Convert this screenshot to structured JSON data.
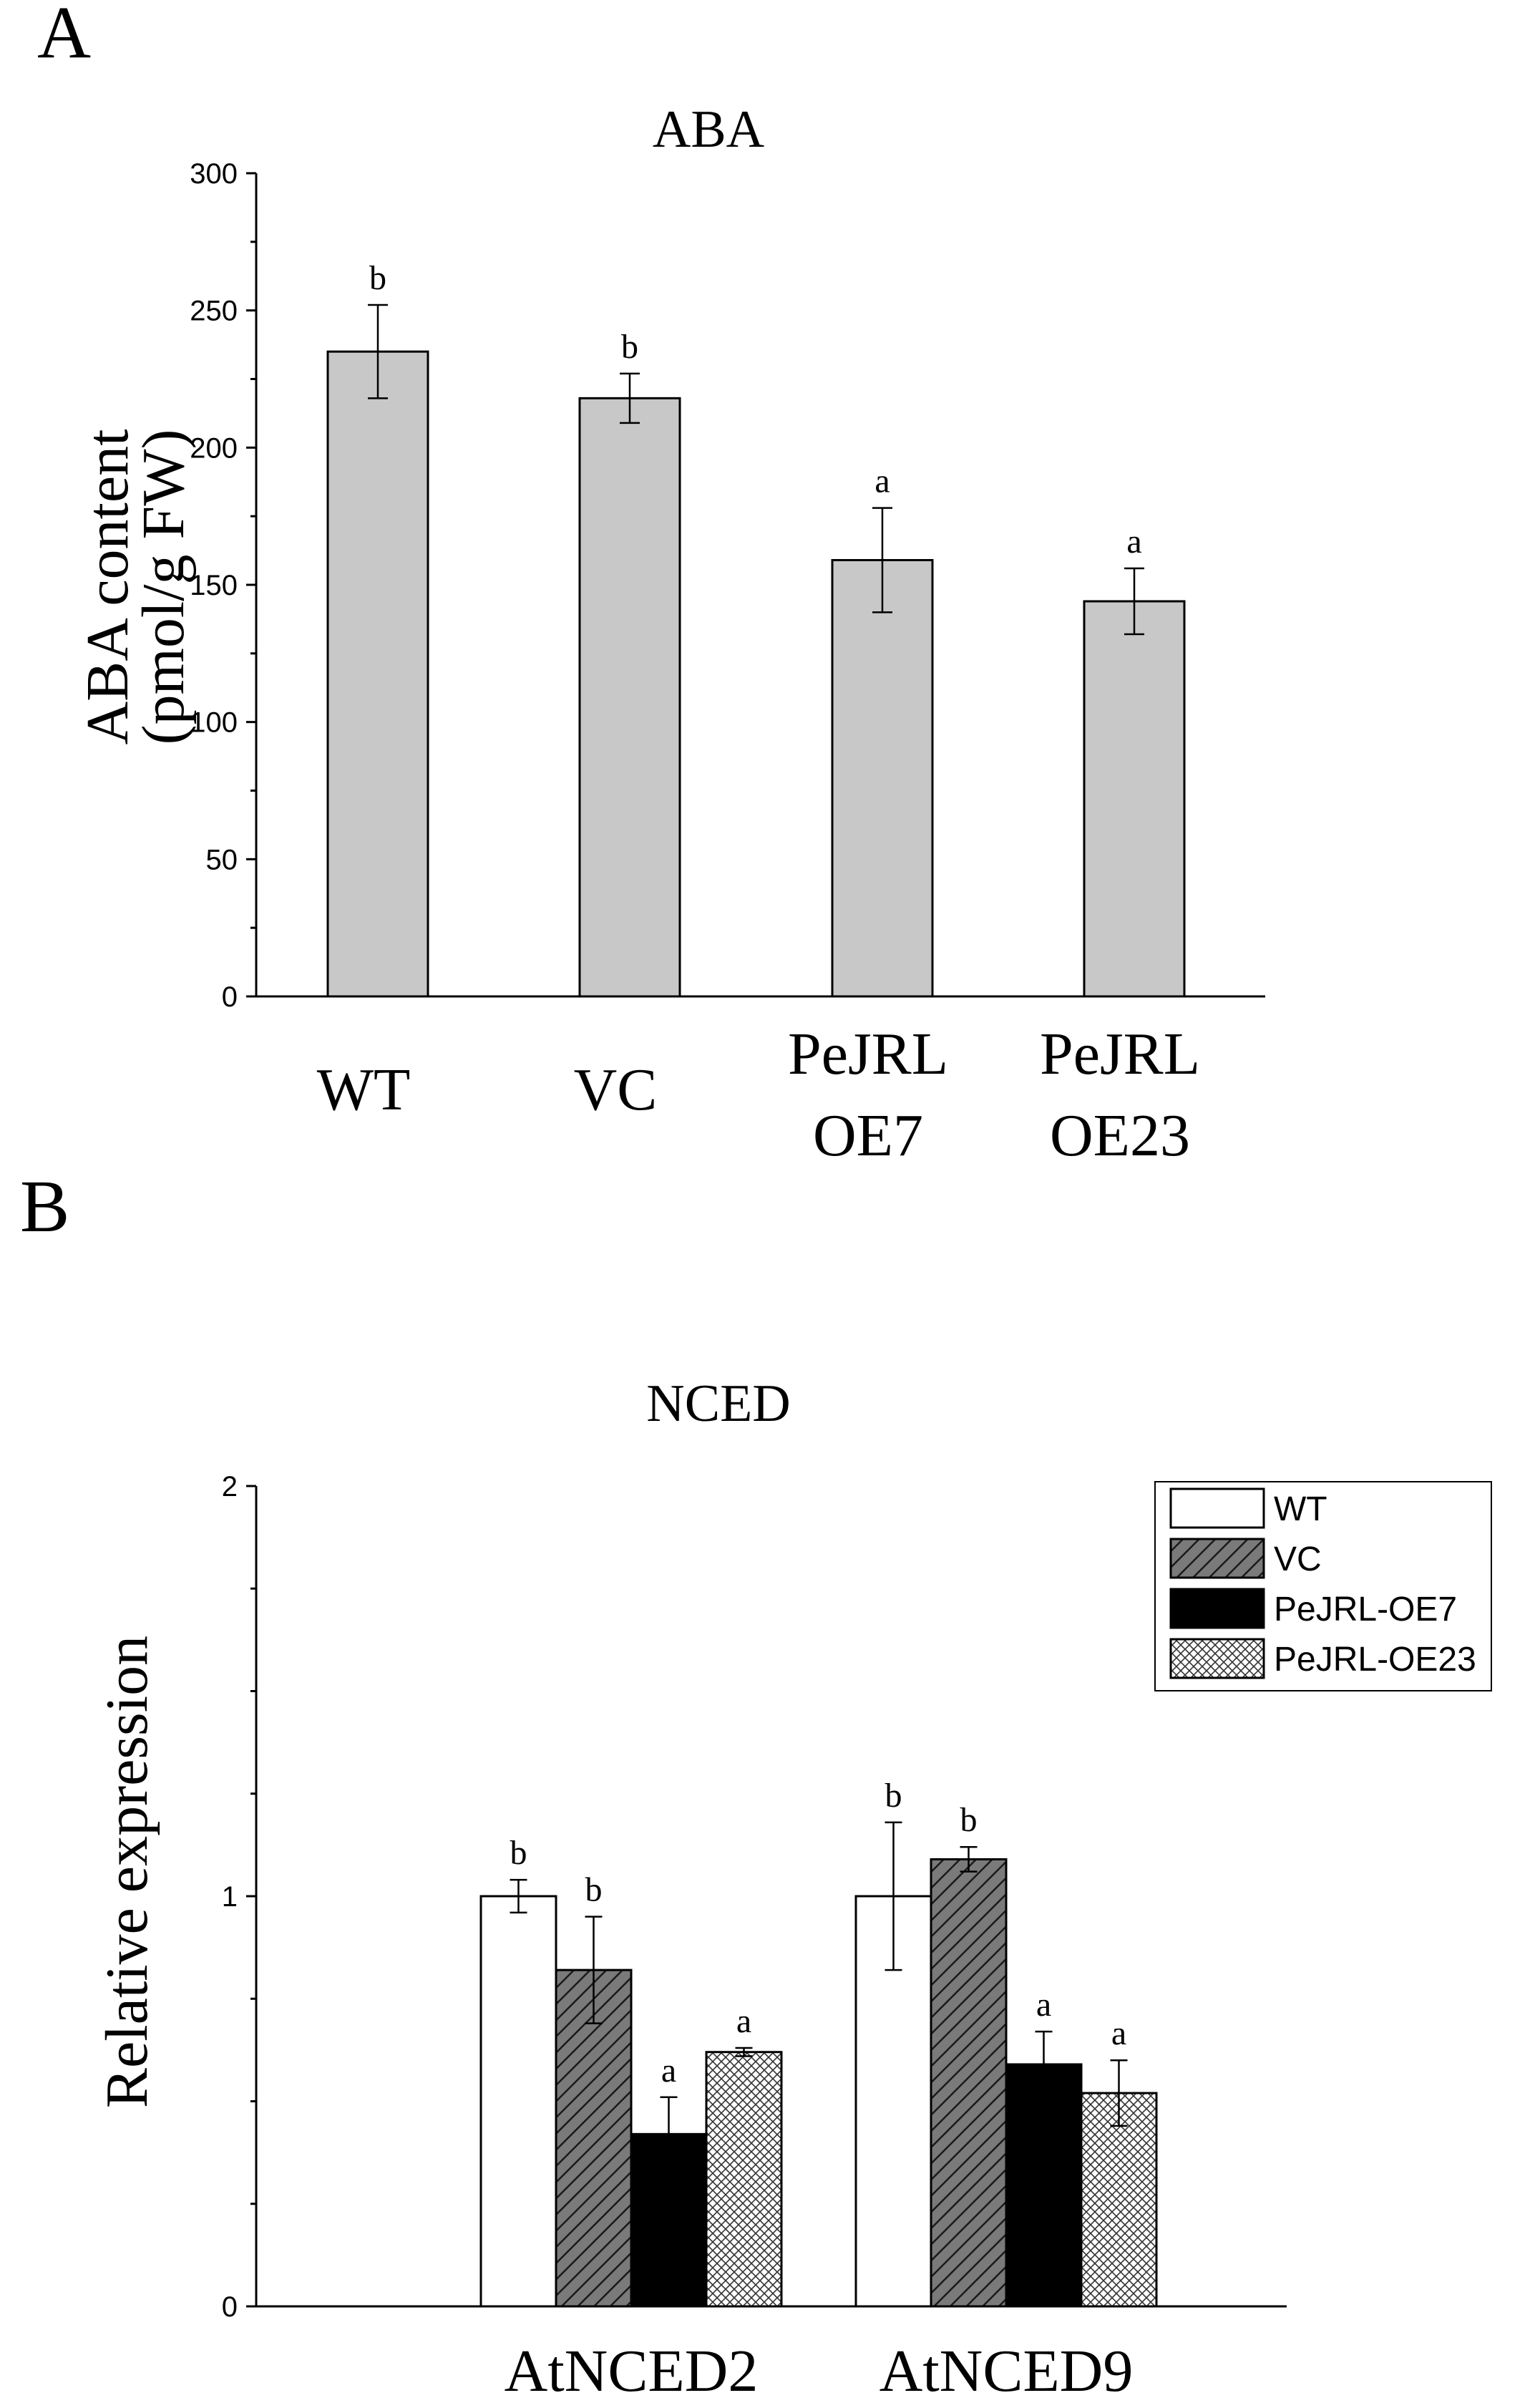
{
  "colors": {
    "bar_gray": "#c8c8c8",
    "dark_gray": "#7a7a7a",
    "black": "#000000",
    "white": "#ffffff"
  },
  "chart_data": [
    {
      "panel": "A",
      "type": "bar",
      "title": "ABA",
      "ylabel_line1": "ABA content",
      "ylabel_line2": "(pmol/g FW)",
      "xlabel": "",
      "ylim": [
        0,
        300
      ],
      "yticks": [
        0,
        50,
        100,
        150,
        200,
        250,
        300
      ],
      "categories": [
        [
          "WT"
        ],
        [
          "VC"
        ],
        [
          "PeJRL",
          "OE7"
        ],
        [
          "PeJRL",
          "OE23"
        ]
      ],
      "values": [
        235,
        218,
        159,
        144
      ],
      "errors": [
        17,
        9,
        19,
        12
      ],
      "significance": [
        "b",
        "b",
        "a",
        "a"
      ]
    },
    {
      "panel": "B",
      "type": "bar",
      "title": "NCED",
      "ylabel": "Relative expression",
      "xlabel": "",
      "ylim": [
        0,
        2
      ],
      "yticks": [
        0,
        1,
        2
      ],
      "categories": [
        "AtNCED2",
        "AtNCED9"
      ],
      "legend_position": "top-right",
      "series": [
        {
          "name": "WT",
          "pattern": "white",
          "values": [
            1.0,
            1.0
          ],
          "errors": [
            0.04,
            0.18
          ],
          "significance": [
            "b",
            "b"
          ]
        },
        {
          "name": "VC",
          "pattern": "hatch",
          "values": [
            0.82,
            1.09
          ],
          "errors": [
            0.13,
            0.03
          ],
          "significance": [
            "b",
            "b"
          ]
        },
        {
          "name": "PeJRL-OE7",
          "pattern": "black",
          "values": [
            0.42,
            0.59
          ],
          "errors": [
            0.09,
            0.08
          ],
          "significance": [
            "a",
            "a"
          ]
        },
        {
          "name": "PeJRL-OE23",
          "pattern": "crosshatch",
          "values": [
            0.62,
            0.52
          ],
          "errors": [
            0.01,
            0.08
          ],
          "significance": [
            "a",
            "a"
          ]
        }
      ]
    }
  ],
  "panel_labels": {
    "a": "A",
    "b": "B"
  }
}
